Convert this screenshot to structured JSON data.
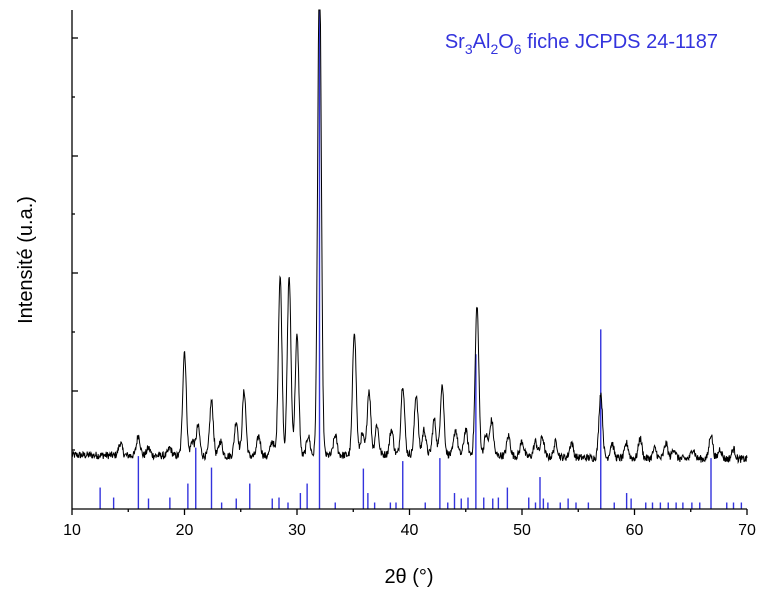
{
  "chart_data": {
    "type": "line",
    "title": "",
    "xlabel": "2θ (°)",
    "ylabel": "Intensité (u.a.)",
    "xlim": [
      10,
      70
    ],
    "ylim": [
      0,
      100
    ],
    "x_ticks": [
      10,
      20,
      30,
      40,
      50,
      60,
      70
    ],
    "y_ticks_labeled": false,
    "grid": false,
    "legend_position": "top-right",
    "legend": {
      "base": "Sr",
      "s1": "3",
      "m1": "Al",
      "s2": "2",
      "m2": "O",
      "s3": "6",
      "suffix": " fiche JCPDS 24-1187"
    },
    "colors": {
      "pattern": "#000000",
      "reference": "#3333dd",
      "axis": "#000000"
    },
    "pattern_baseline": 10.8,
    "pattern_end": 10.0,
    "pattern_noise": 0.55,
    "pattern_peaks": [
      [
        14.3,
        2.5
      ],
      [
        15.9,
        4
      ],
      [
        16.8,
        1.5
      ],
      [
        18.7,
        1.5
      ],
      [
        20.0,
        21
      ],
      [
        20.7,
        3
      ],
      [
        21.2,
        6
      ],
      [
        22.4,
        11
      ],
      [
        23.2,
        3
      ],
      [
        24.6,
        7
      ],
      [
        25.3,
        13
      ],
      [
        26.6,
        4
      ],
      [
        27.8,
        3
      ],
      [
        28.5,
        36
      ],
      [
        29.3,
        36
      ],
      [
        30.0,
        24
      ],
      [
        31.0,
        4
      ],
      [
        32.0,
        100
      ],
      [
        33.4,
        4
      ],
      [
        35.1,
        25
      ],
      [
        35.8,
        4
      ],
      [
        36.4,
        13
      ],
      [
        37.1,
        6
      ],
      [
        38.4,
        5
      ],
      [
        39.4,
        14
      ],
      [
        40.6,
        12
      ],
      [
        41.3,
        5
      ],
      [
        42.2,
        7
      ],
      [
        42.9,
        14
      ],
      [
        44.1,
        5
      ],
      [
        45.0,
        5
      ],
      [
        46.0,
        30
      ],
      [
        46.8,
        4
      ],
      [
        47.3,
        7
      ],
      [
        48.8,
        4
      ],
      [
        50.0,
        3
      ],
      [
        51.2,
        3
      ],
      [
        51.8,
        4
      ],
      [
        53.0,
        3
      ],
      [
        54.4,
        3
      ],
      [
        57.0,
        13
      ],
      [
        58.0,
        3
      ],
      [
        59.3,
        3
      ],
      [
        60.5,
        4
      ],
      [
        61.8,
        2
      ],
      [
        62.8,
        3
      ],
      [
        63.5,
        2
      ],
      [
        65.2,
        2
      ],
      [
        66.8,
        5
      ],
      [
        67.6,
        2
      ],
      [
        68.8,
        2
      ]
    ],
    "reference_peaks": [
      [
        12.5,
        4.3
      ],
      [
        13.7,
        2.3
      ],
      [
        15.9,
        10.6
      ],
      [
        16.8,
        2.1
      ],
      [
        18.7,
        2.3
      ],
      [
        20.3,
        5.1
      ],
      [
        21.0,
        12.3
      ],
      [
        22.4,
        8.3
      ],
      [
        23.3,
        1.3
      ],
      [
        24.6,
        2.1
      ],
      [
        25.8,
        5.1
      ],
      [
        27.8,
        2.1
      ],
      [
        28.4,
        2.3
      ],
      [
        29.2,
        1.3
      ],
      [
        30.3,
        3.2
      ],
      [
        30.9,
        5.1
      ],
      [
        32.0,
        100
      ],
      [
        33.4,
        1.3
      ],
      [
        35.9,
        8.1
      ],
      [
        36.3,
        3.2
      ],
      [
        36.9,
        1.3
      ],
      [
        38.3,
        1.3
      ],
      [
        38.8,
        1.3
      ],
      [
        39.4,
        9.6
      ],
      [
        41.4,
        1.3
      ],
      [
        42.7,
        10.2
      ],
      [
        43.4,
        1.3
      ],
      [
        44.0,
        3.2
      ],
      [
        44.6,
        2.1
      ],
      [
        45.2,
        2.3
      ],
      [
        45.9,
        31
      ],
      [
        46.6,
        2.3
      ],
      [
        47.4,
        2.1
      ],
      [
        47.9,
        2.3
      ],
      [
        48.7,
        4.3
      ],
      [
        50.6,
        2.3
      ],
      [
        51.2,
        1.3
      ],
      [
        51.6,
        6.4
      ],
      [
        51.9,
        2.1
      ],
      [
        52.3,
        1.3
      ],
      [
        53.4,
        1.3
      ],
      [
        54.1,
        2.1
      ],
      [
        54.8,
        1.3
      ],
      [
        55.9,
        1.3
      ],
      [
        57.0,
        36
      ],
      [
        58.2,
        1.3
      ],
      [
        59.3,
        3.2
      ],
      [
        59.7,
        2.1
      ],
      [
        61.0,
        1.3
      ],
      [
        61.6,
        1.3
      ],
      [
        62.3,
        1.3
      ],
      [
        63.0,
        1.3
      ],
      [
        63.7,
        1.3
      ],
      [
        64.3,
        1.3
      ],
      [
        65.1,
        1.3
      ],
      [
        65.8,
        1.3
      ],
      [
        66.8,
        10.2
      ],
      [
        68.2,
        1.3
      ],
      [
        68.8,
        1.3
      ],
      [
        69.5,
        1.3
      ]
    ]
  }
}
